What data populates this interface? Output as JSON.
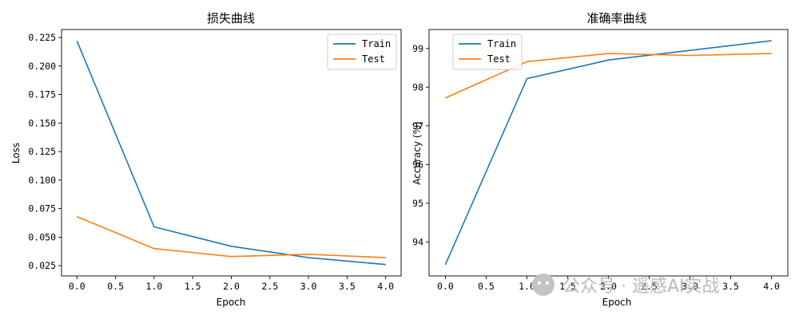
{
  "chart_data": [
    {
      "type": "line",
      "title": "损失曲线",
      "xlabel": "Epoch",
      "ylabel": "Loss",
      "x": [
        0,
        1,
        2,
        3,
        4
      ],
      "xlim": [
        -0.2,
        4.2
      ],
      "ylim": [
        0.016,
        0.232
      ],
      "xticks": [
        0,
        0.5,
        1,
        1.5,
        2,
        2.5,
        3,
        3.5,
        4
      ],
      "xtick_labels": [
        "0.0",
        "0.5",
        "1.0",
        "1.5",
        "2.0",
        "2.5",
        "3.0",
        "3.5",
        "4.0"
      ],
      "yticks": [
        0.025,
        0.05,
        0.075,
        0.1,
        0.125,
        0.15,
        0.175,
        0.2,
        0.225
      ],
      "ytick_labels": [
        "0.025",
        "0.050",
        "0.075",
        "0.100",
        "0.125",
        "0.150",
        "0.175",
        "0.200",
        "0.225"
      ],
      "legend_position": "top-right",
      "series": [
        {
          "name": "Train",
          "color": "#1f77b4",
          "values": [
            0.222,
            0.059,
            0.042,
            0.032,
            0.026
          ]
        },
        {
          "name": "Test",
          "color": "#ff7f0e",
          "values": [
            0.068,
            0.04,
            0.033,
            0.035,
            0.032
          ]
        }
      ]
    },
    {
      "type": "line",
      "title": "准确率曲线",
      "xlabel": "Epoch",
      "ylabel": "Accuracy (%)",
      "x": [
        0,
        1,
        2,
        3,
        4
      ],
      "xlim": [
        -0.2,
        4.2
      ],
      "ylim": [
        93.12,
        99.49
      ],
      "xticks": [
        0,
        0.5,
        1,
        1.5,
        2,
        2.5,
        3,
        3.5,
        4
      ],
      "xtick_labels": [
        "0.0",
        "0.5",
        "1.0",
        "1.5",
        "2.0",
        "2.5",
        "3.0",
        "3.5",
        "4.0"
      ],
      "yticks": [
        94,
        95,
        96,
        97,
        98,
        99
      ],
      "ytick_labels": [
        "94",
        "95",
        "96",
        "97",
        "98",
        "99"
      ],
      "legend_position": "top-left",
      "series": [
        {
          "name": "Train",
          "color": "#1f77b4",
          "values": [
            93.41,
            98.22,
            98.7,
            98.95,
            99.2
          ]
        },
        {
          "name": "Test",
          "color": "#ff7f0e",
          "values": [
            97.72,
            98.66,
            98.87,
            98.82,
            98.87
          ]
        }
      ]
    }
  ],
  "watermark": {
    "text": "公众号 · 遥感AI实战",
    "icon": "wechat-icon"
  }
}
